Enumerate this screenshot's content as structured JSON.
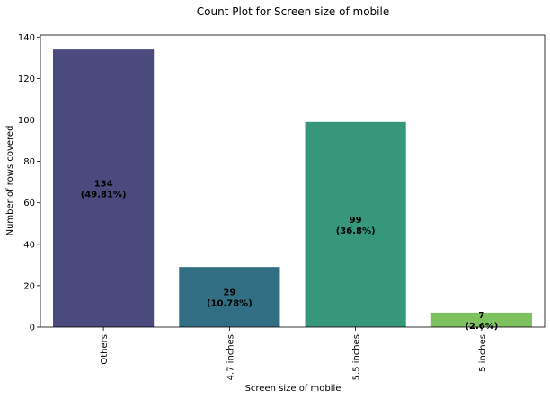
{
  "chart_data": {
    "type": "bar",
    "title": "Count Plot for Screen size of mobile",
    "xlabel": "Screen size of mobile",
    "ylabel": "Number of rows covered",
    "categories": [
      "Others",
      "4.7 inches",
      "5.5 inches",
      "5 inches"
    ],
    "values": [
      134,
      29,
      99,
      7
    ],
    "data_labels": [
      [
        "134",
        "(49.81%)"
      ],
      [
        "29",
        "(10.78%)"
      ],
      [
        "99",
        "(36.8%)"
      ],
      [
        "7",
        "(2.6%)"
      ]
    ],
    "colors": [
      "#4a4a7e",
      "#336f84",
      "#36977b",
      "#7dc25f"
    ],
    "ylim": [
      0,
      141
    ],
    "yticks": [
      0,
      20,
      40,
      60,
      80,
      100,
      120,
      140
    ],
    "grid": false,
    "legend": "none"
  }
}
